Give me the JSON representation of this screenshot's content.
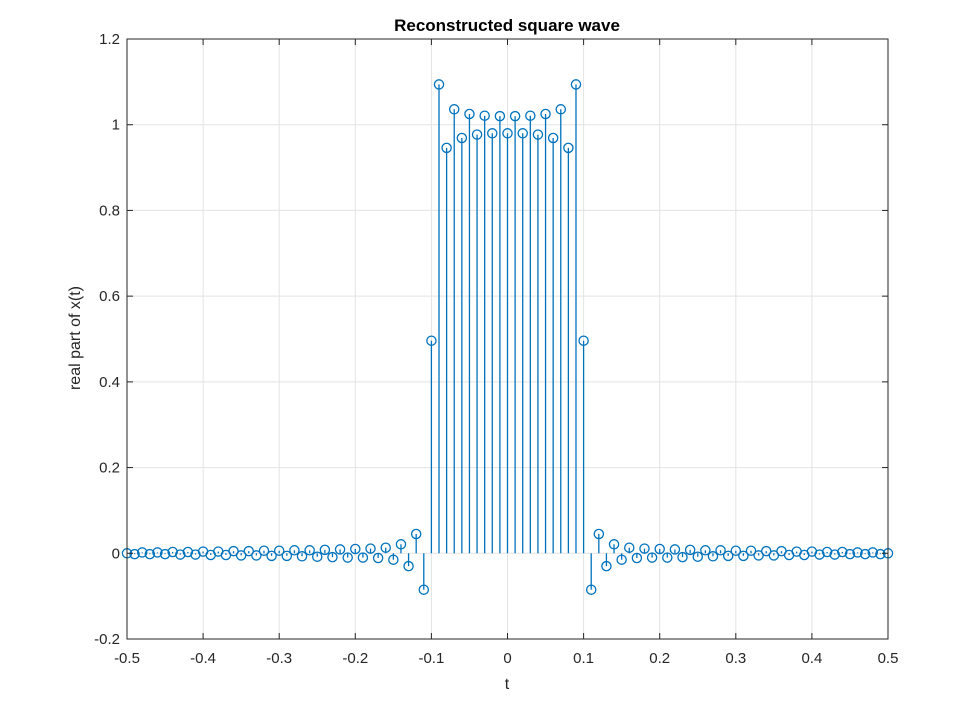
{
  "colors": {
    "series": "#0072BD",
    "axis": "#262626",
    "grid": "#e3e3e3",
    "background": "#ffffff"
  },
  "chart_data": {
    "type": "stem",
    "title": "Reconstructed square wave",
    "xlabel": "t",
    "ylabel": "real part of x(t)",
    "xlim": [
      -0.5,
      0.5
    ],
    "ylim": [
      -0.2,
      1.2
    ],
    "xticks": [
      -0.5,
      -0.4,
      -0.3,
      -0.2,
      -0.1,
      0,
      0.1,
      0.2,
      0.3,
      0.4,
      0.5
    ],
    "xtick_labels": [
      "-0.5",
      "-0.4",
      "-0.3",
      "-0.2",
      "-0.1",
      "0",
      "0.1",
      "0.2",
      "0.3",
      "0.4",
      "0.5"
    ],
    "yticks": [
      -0.2,
      0,
      0.2,
      0.4,
      0.6,
      0.8,
      1,
      1.2
    ],
    "ytick_labels": [
      "-0.2",
      "0",
      "0.2",
      "0.4",
      "0.6",
      "0.8",
      "1",
      "1.2"
    ],
    "grid": true,
    "marker": "circle",
    "x": [
      -0.5,
      -0.49,
      -0.48,
      -0.47,
      -0.46,
      -0.45,
      -0.44,
      -0.43,
      -0.42,
      -0.41,
      -0.4,
      -0.39,
      -0.38,
      -0.37,
      -0.36,
      -0.35,
      -0.34,
      -0.33,
      -0.32,
      -0.31,
      -0.3,
      -0.29,
      -0.28,
      -0.27,
      -0.26,
      -0.25,
      -0.24,
      -0.23,
      -0.22,
      -0.21,
      -0.2,
      -0.19,
      -0.18,
      -0.17,
      -0.16,
      -0.15,
      -0.14,
      -0.13,
      -0.12,
      -0.11,
      -0.1,
      -0.09,
      -0.08,
      -0.07,
      -0.06,
      -0.05,
      -0.04,
      -0.03,
      -0.02,
      -0.01,
      0,
      0.01,
      0.02,
      0.03,
      0.04,
      0.05,
      0.06,
      0.07,
      0.08,
      0.09,
      0.1,
      0.11,
      0.12,
      0.13,
      0.14,
      0.15,
      0.16,
      0.17,
      0.18,
      0.19,
      0.2,
      0.21,
      0.22,
      0.23,
      0.24,
      0.25,
      0.26,
      0.27,
      0.28,
      0.29,
      0.3,
      0.31,
      0.32,
      0.33,
      0.34,
      0.35,
      0.36,
      0.37,
      0.38,
      0.39,
      0.4,
      0.41,
      0.42,
      0.43,
      0.44,
      0.45,
      0.46,
      0.47,
      0.48,
      0.49,
      0.5
    ],
    "y": [
      0,
      -0.002,
      0.002,
      -0.002,
      0.002,
      -0.002,
      0.003,
      -0.003,
      0.003,
      -0.003,
      0.004,
      -0.004,
      0.004,
      -0.004,
      0.005,
      -0.005,
      0.005,
      -0.005,
      0.006,
      -0.006,
      0.006,
      -0.006,
      0.007,
      -0.007,
      0.007,
      -0.008,
      0.008,
      -0.009,
      0.009,
      -0.01,
      0.01,
      -0.01,
      0.011,
      -0.011,
      0.013,
      -0.015,
      0.021,
      -0.03,
      0.045,
      -0.085,
      0.496,
      1.094,
      0.946,
      1.036,
      0.969,
      1.025,
      0.977,
      1.021,
      0.98,
      1.02,
      0.98,
      1.02,
      0.98,
      1.021,
      0.977,
      1.025,
      0.969,
      1.036,
      0.946,
      1.094,
      0.496,
      -0.085,
      0.045,
      -0.03,
      0.021,
      -0.015,
      0.013,
      -0.011,
      0.011,
      -0.01,
      0.01,
      -0.01,
      0.009,
      -0.009,
      0.008,
      -0.008,
      0.007,
      -0.007,
      0.007,
      -0.006,
      0.006,
      -0.006,
      0.006,
      -0.005,
      0.005,
      -0.005,
      0.005,
      -0.004,
      0.004,
      -0.004,
      0.004,
      -0.003,
      0.003,
      -0.003,
      0.003,
      -0.002,
      0.002,
      -0.002,
      0.002,
      -0.002,
      0
    ]
  }
}
